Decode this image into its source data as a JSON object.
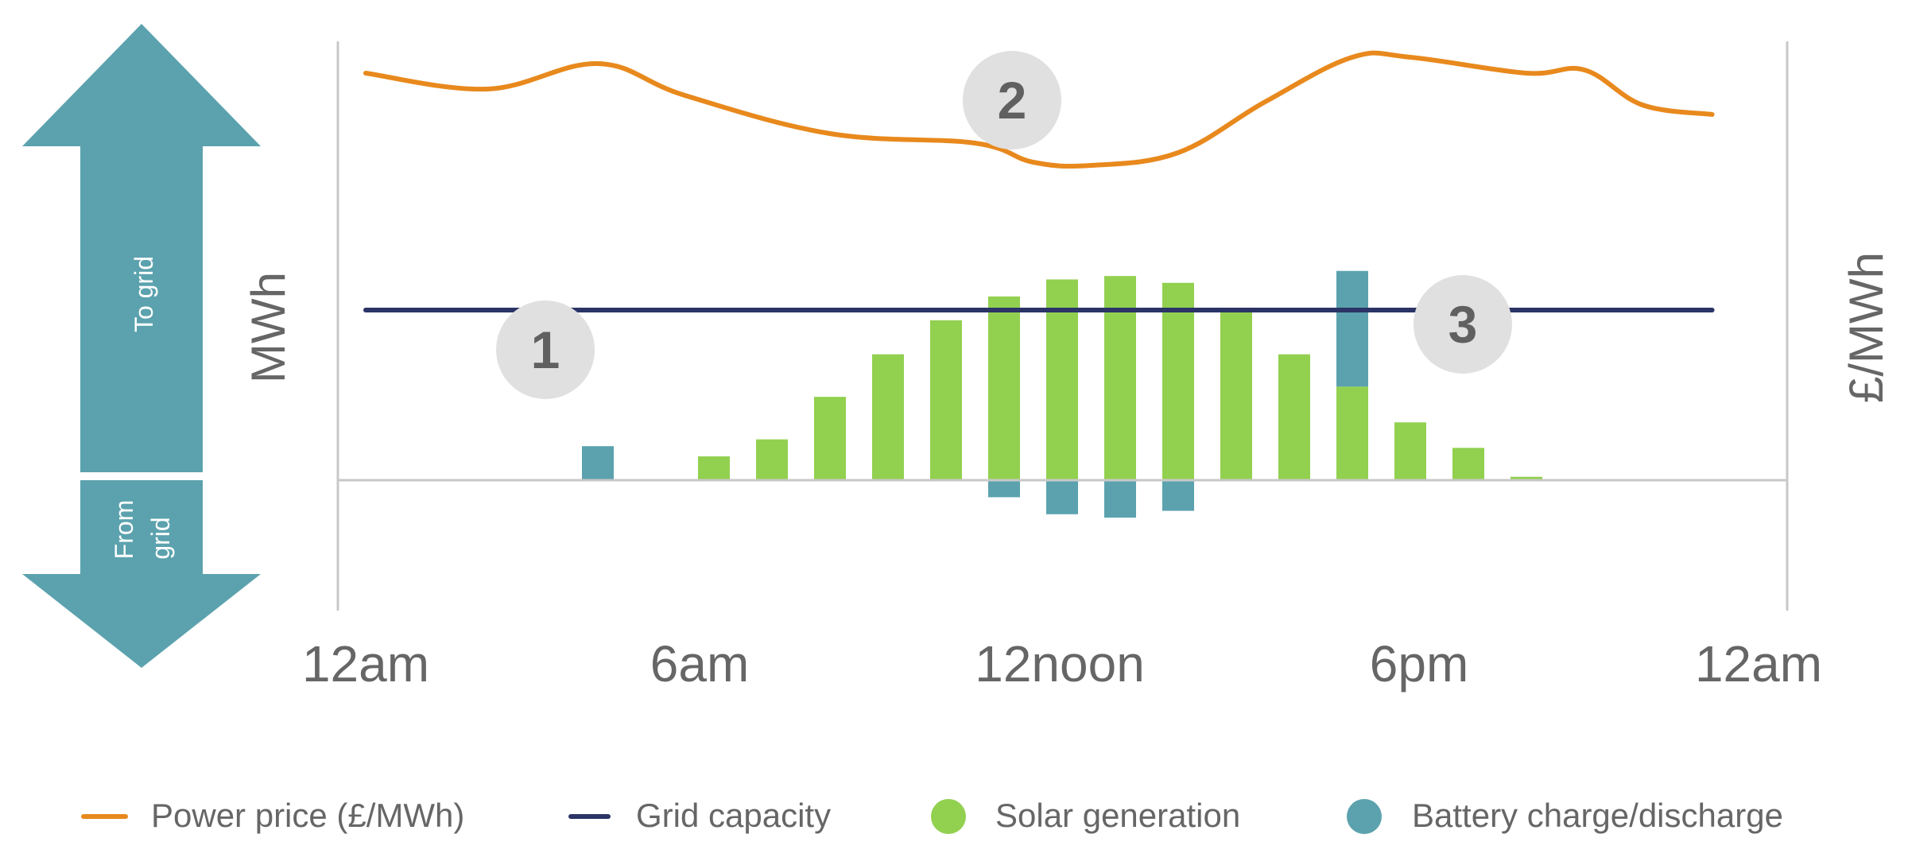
{
  "chart_data": {
    "type": "bar",
    "categories": [
      "00:00",
      "01:00",
      "02:00",
      "03:00",
      "04:00",
      "05:00",
      "06:00",
      "07:00",
      "08:00",
      "09:00",
      "10:00",
      "11:00",
      "12:00",
      "13:00",
      "14:00",
      "15:00",
      "16:00",
      "17:00",
      "18:00",
      "19:00",
      "20:00",
      "21:00",
      "22:00",
      "23:00",
      "24:00"
    ],
    "x_tick_labels": [
      "12am",
      "6am",
      "12noon",
      "6pm",
      "12am"
    ],
    "ylabel": "MWh",
    "y2label": "£/MWh",
    "arrow_labels": {
      "to_grid": "To grid",
      "from_grid_1": "From",
      "from_grid_2": "grid"
    },
    "annotations": [
      "1",
      "2",
      "3"
    ],
    "grid_capacity": 10,
    "ylim": [
      -5,
      17
    ],
    "y2lim": [
      0,
      100
    ],
    "series": [
      {
        "name": "Solar generation",
        "kind": "bar",
        "color": "#92d050",
        "values": [
          0,
          0,
          0,
          0,
          0,
          0,
          1.4,
          2.4,
          4.9,
          7.4,
          9.4,
          10.8,
          11.8,
          12.0,
          11.6,
          10.0,
          7.4,
          5.5,
          3.4,
          1.9,
          0.2,
          0,
          0,
          0,
          0
        ]
      },
      {
        "name": "Battery charge/discharge",
        "kind": "bar",
        "color": "#5ba2ae",
        "values": [
          0,
          0,
          0,
          0,
          2.0,
          0,
          0,
          0,
          0,
          0,
          0,
          -1.0,
          -2.0,
          -2.2,
          -1.8,
          0,
          0,
          6.8,
          0,
          0,
          0,
          0,
          0,
          0,
          0
        ]
      },
      {
        "name": "Power price (£/MWh)",
        "kind": "line",
        "color": "#e8891d",
        "points": [
          [
            0.0,
            82
          ],
          [
            2.1,
            77
          ],
          [
            4.0,
            85
          ],
          [
            5.5,
            75
          ],
          [
            8.0,
            63
          ],
          [
            10.5,
            60
          ],
          [
            11.5,
            54
          ],
          [
            12.5,
            53
          ],
          [
            14.0,
            57
          ],
          [
            15.5,
            73
          ],
          [
            17.0,
            87
          ],
          [
            18.0,
            87
          ],
          [
            20.0,
            82
          ],
          [
            21.0,
            83
          ],
          [
            22.0,
            72
          ],
          [
            23.2,
            69
          ]
        ]
      },
      {
        "name": "Grid capacity",
        "kind": "line",
        "color": "#2b3466",
        "value": 10
      }
    ],
    "colors": {
      "solar": "#92d050",
      "battery": "#5ba2ae",
      "price": "#e8891d",
      "grid": "#2b3466",
      "axis": "#c8c8c8",
      "text": "#666666",
      "badge": "#e0e0e0",
      "badge_text": "#606060"
    }
  }
}
